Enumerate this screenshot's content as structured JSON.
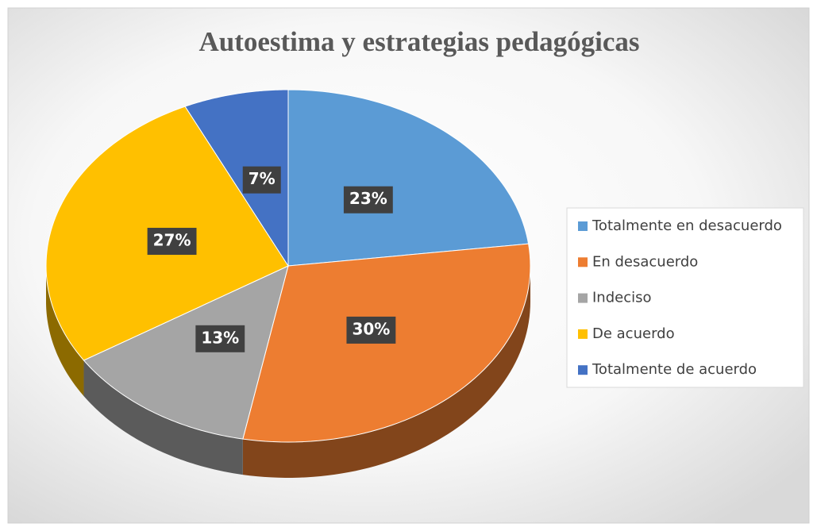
{
  "chart_data": {
    "type": "pie",
    "title": "Autoestima y estrategias pedagógicas",
    "categories": [
      "Totalmente en desacuerdo",
      "En desacuerdo",
      "Indeciso",
      "De acuerdo",
      "Totalmente de acuerdo"
    ],
    "values": [
      23,
      30,
      13,
      27,
      7
    ],
    "value_labels": [
      "23%",
      "30%",
      "13%",
      "27%",
      "7%"
    ],
    "colors": [
      "#5b9bd5",
      "#ed7d31",
      "#a5a5a5",
      "#ffc000",
      "#4472c4"
    ],
    "legend": "right"
  }
}
